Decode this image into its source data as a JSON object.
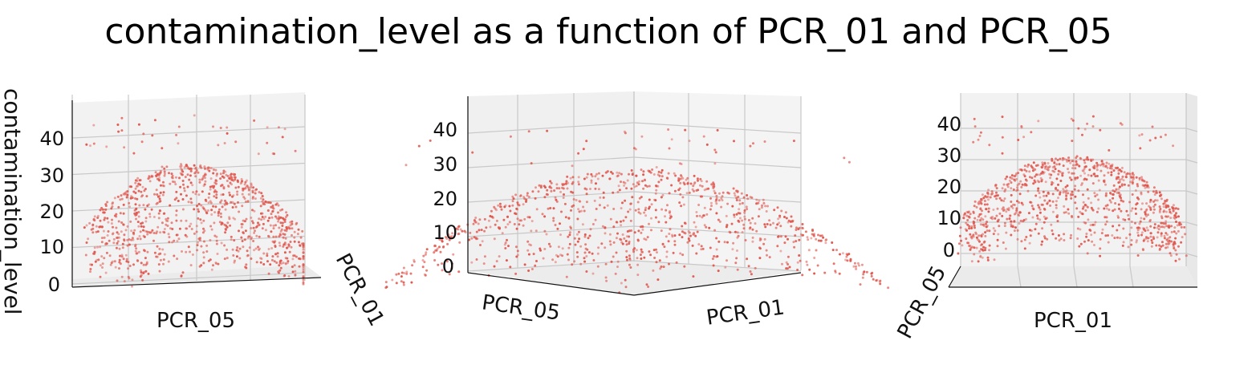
{
  "chart_data": {
    "type": "scatter",
    "title": "contamination_level as a function of PCR_01 and PCR_05",
    "point_color": "#e0584f",
    "pane_color": "#f2f2f2",
    "grid_color": "#c8c8c8",
    "zlim": [
      0,
      45
    ],
    "panels": [
      {
        "view": "facing PCR_05 axis",
        "xlabel": "PCR_05",
        "ylabel": "PCR_01",
        "zlabel": "contamination_level",
        "ztick_labels": [
          "0",
          "10",
          "20",
          "30",
          "40"
        ]
      },
      {
        "view": "oblique corner",
        "xlabel": "PCR_05",
        "ylabel": "PCR_01",
        "zlabel": "",
        "ztick_labels": [
          "0",
          "10",
          "20",
          "30",
          "40"
        ]
      },
      {
        "view": "facing PCR_01 axis",
        "xlabel": "PCR_01",
        "ylabel": "PCR_05",
        "zlabel": "",
        "ztick_labels": [
          "0",
          "10",
          "20",
          "30",
          "40"
        ]
      }
    ],
    "points_note": "approx. 1000 sampled points forming a dome-shaped surface peaking near 30 with an outlier ridge up to ~45"
  }
}
